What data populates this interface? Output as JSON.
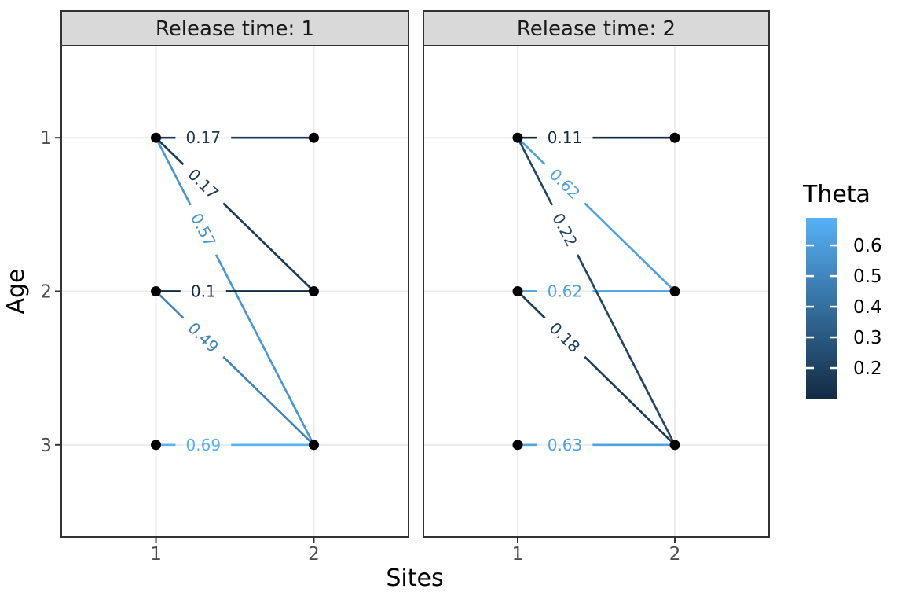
{
  "chart_data": {
    "type": "line",
    "title": "",
    "xlabel": "Sites",
    "ylabel": "Age",
    "x_tick_labels": [
      "1",
      "2"
    ],
    "y_tick_labels": [
      "1",
      "2",
      "3"
    ],
    "x_categories": [
      1,
      2
    ],
    "y_categories": [
      1,
      2,
      3
    ],
    "grid": true,
    "legend_position": "right",
    "facets": [
      {
        "label": "Release time: 1",
        "edges": [
          {
            "from_site": 1,
            "from_age": 1,
            "to_site": 2,
            "to_age": 1,
            "theta": 0.17,
            "label": "0.17"
          },
          {
            "from_site": 1,
            "from_age": 1,
            "to_site": 2,
            "to_age": 2,
            "theta": 0.17,
            "label": "0.17"
          },
          {
            "from_site": 1,
            "from_age": 2,
            "to_site": 2,
            "to_age": 2,
            "theta": 0.1,
            "label": "0.1"
          },
          {
            "from_site": 1,
            "from_age": 1,
            "to_site": 2,
            "to_age": 3,
            "theta": 0.57,
            "label": "0.57"
          },
          {
            "from_site": 1,
            "from_age": 2,
            "to_site": 2,
            "to_age": 3,
            "theta": 0.49,
            "label": "0.49"
          },
          {
            "from_site": 1,
            "from_age": 3,
            "to_site": 2,
            "to_age": 3,
            "theta": 0.69,
            "label": "0.69"
          }
        ]
      },
      {
        "label": "Release time: 2",
        "edges": [
          {
            "from_site": 1,
            "from_age": 1,
            "to_site": 2,
            "to_age": 1,
            "theta": 0.11,
            "label": "0.11"
          },
          {
            "from_site": 1,
            "from_age": 1,
            "to_site": 2,
            "to_age": 2,
            "theta": 0.62,
            "label": "0.62"
          },
          {
            "from_site": 1,
            "from_age": 2,
            "to_site": 2,
            "to_age": 2,
            "theta": 0.62,
            "label": "0.62"
          },
          {
            "from_site": 1,
            "from_age": 1,
            "to_site": 2,
            "to_age": 3,
            "theta": 0.22,
            "label": "0.22"
          },
          {
            "from_site": 1,
            "from_age": 2,
            "to_site": 2,
            "to_age": 3,
            "theta": 0.18,
            "label": "0.18"
          },
          {
            "from_site": 1,
            "from_age": 3,
            "to_site": 2,
            "to_age": 3,
            "theta": 0.63,
            "label": "0.63"
          }
        ]
      }
    ],
    "legend": {
      "title": "Theta",
      "tick_labels": [
        "0.6",
        "0.5",
        "0.4",
        "0.3",
        "0.2"
      ],
      "tick_values": [
        0.6,
        0.5,
        0.4,
        0.3,
        0.2
      ],
      "scale_min": 0.1,
      "scale_max": 0.69,
      "low_color": "#132B43",
      "high_color": "#56B1F7"
    },
    "style": {
      "strip_fill": "#d9d9d9",
      "strip_border": "#333333",
      "panel_border": "#333333",
      "panel_fill": "#ffffff",
      "grid_color": "#ebebeb",
      "point_color": "#000000",
      "axis_text_color": "#4d4d4d",
      "strip_text_color": "#1a1a1a",
      "title_color": "#000000",
      "tick_mark_color": "#333333",
      "legend_tick_color": "#ffffff"
    }
  }
}
